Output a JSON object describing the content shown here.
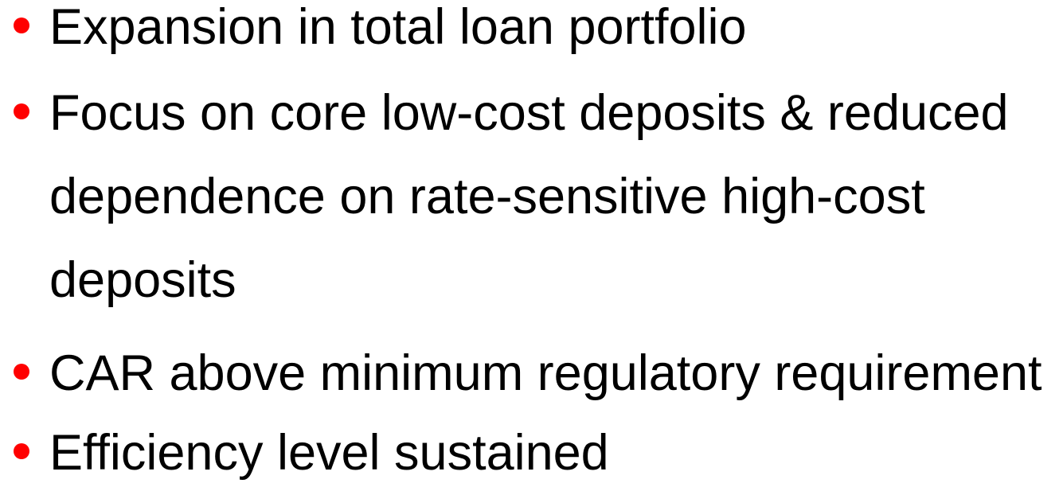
{
  "bullets": [
    "Expansion in total loan portfolio",
    "Focus on core low-cost deposits & reduced dependence on rate-sensitive high-cost deposits",
    "CAR above minimum regulatory requirement",
    "Efficiency level sustained"
  ]
}
